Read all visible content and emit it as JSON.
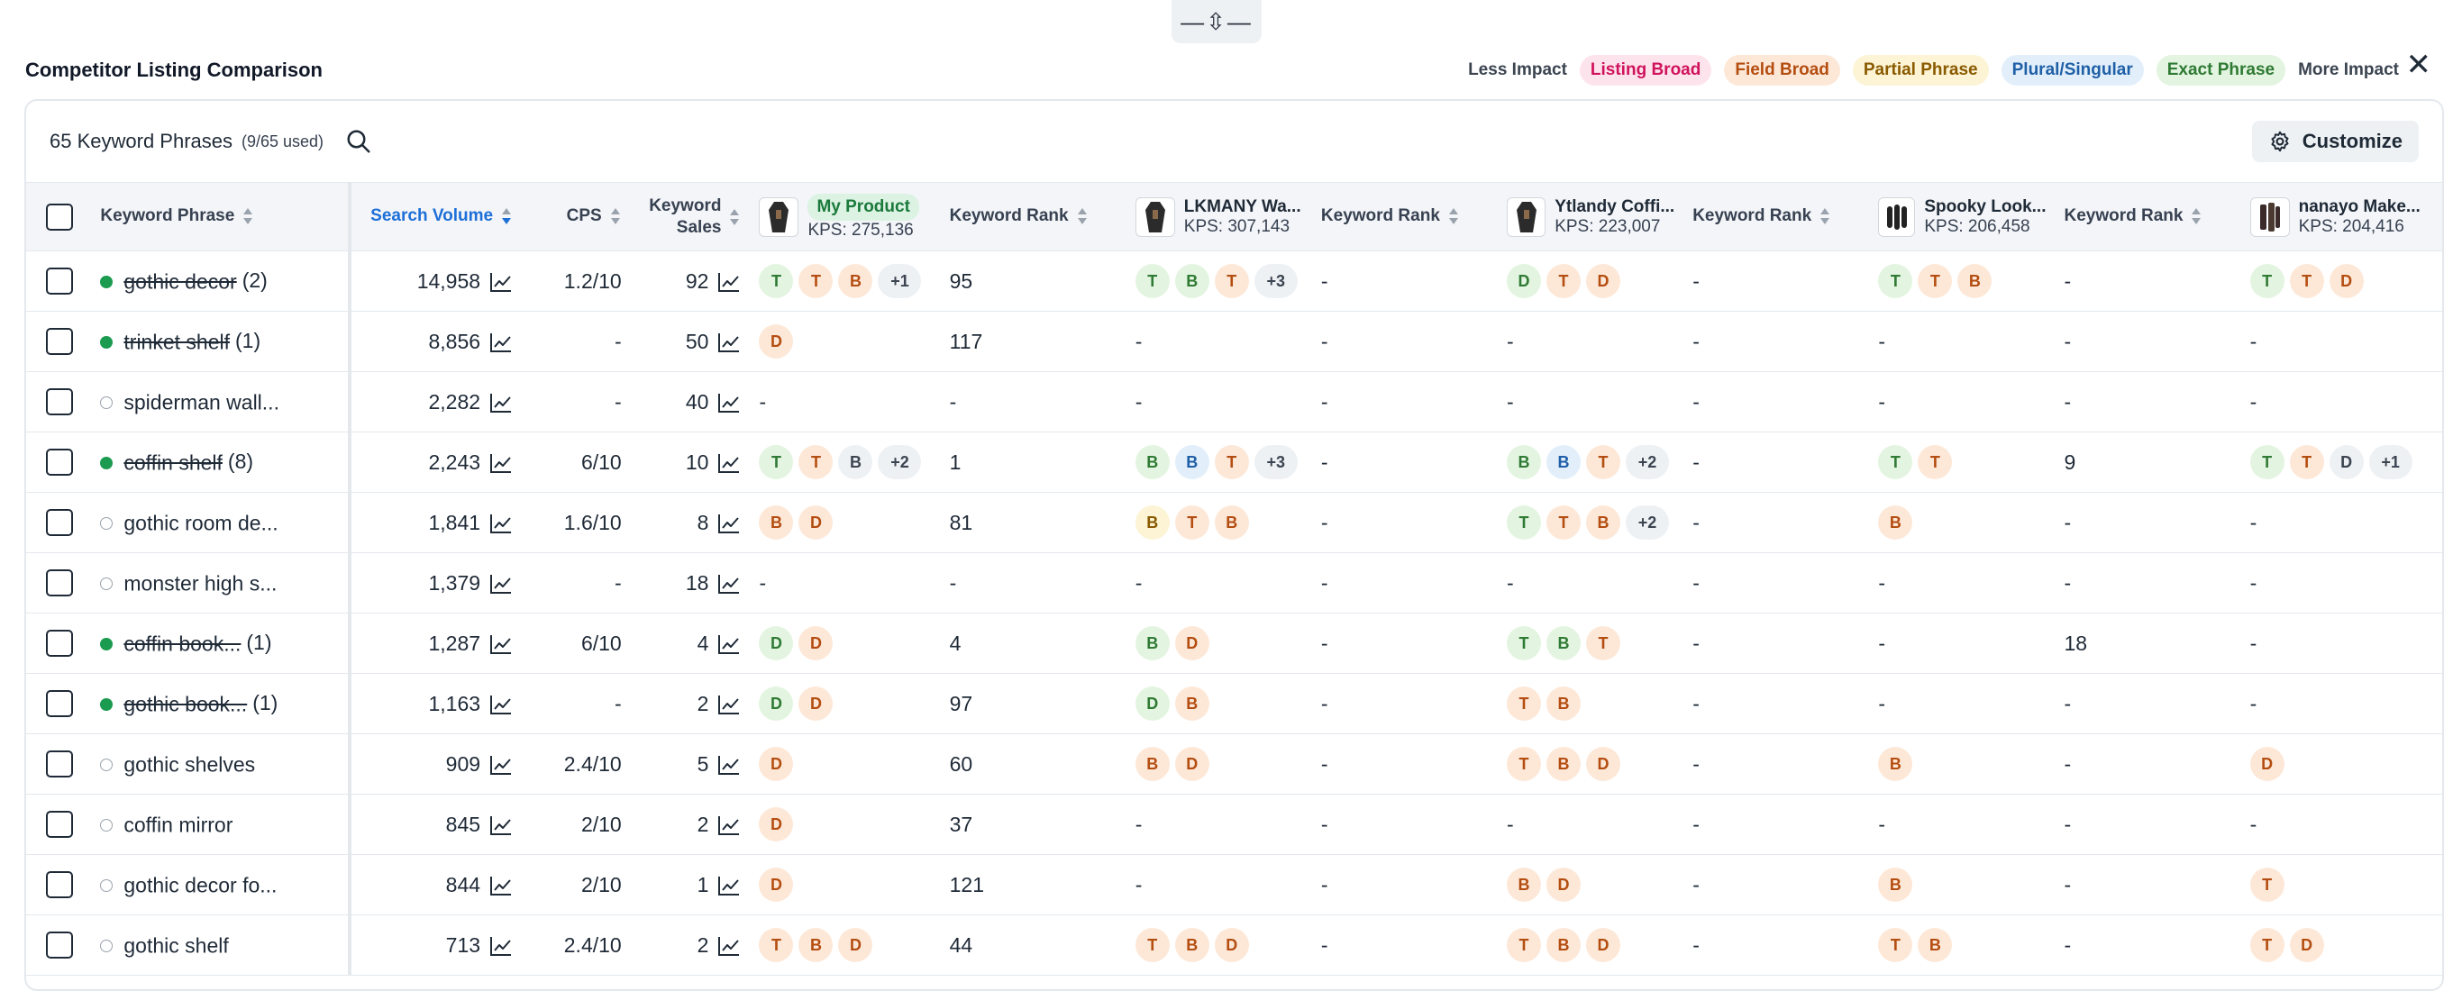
{
  "handle": {
    "glyph": "—⇳—"
  },
  "title": "Competitor Listing Comparison",
  "legend": {
    "less": "Less Impact",
    "more": "More Impact",
    "pills": [
      {
        "label": "Listing Broad",
        "bg": "#fde4ec",
        "fg": "#d0135d"
      },
      {
        "label": "Field Broad",
        "bg": "#fde8d8",
        "fg": "#b44d10"
      },
      {
        "label": "Partial Phrase",
        "bg": "#fcf4d4",
        "fg": "#8a5a00"
      },
      {
        "label": "Plural/Singular",
        "bg": "#e2effb",
        "fg": "#1f5fa6"
      },
      {
        "label": "Exact Phrase",
        "bg": "#e3f5e0",
        "fg": "#2f7a34"
      }
    ]
  },
  "close_glyph": "✕",
  "header": {
    "count": "65 Keyword Phrases",
    "used": "(9/65 used)",
    "customize": "Customize"
  },
  "columns": {
    "keyword": "Keyword Phrase",
    "volume": "Search Volume",
    "cps": "CPS",
    "sales_1": "Keyword",
    "sales_2": "Sales",
    "rank": "Keyword Rank"
  },
  "products": [
    {
      "name": "My Product",
      "kps": "KPS: 275,136",
      "mine": true
    },
    {
      "name": "LKMANY Wa...",
      "kps": "KPS: 307,143"
    },
    {
      "name": "Ytlandy Coffi...",
      "kps": "KPS: 223,007"
    },
    {
      "name": "Spooky Look...",
      "kps": "KPS: 206,458"
    },
    {
      "name": "nanayo Make...",
      "kps": "KPS: 204,416"
    }
  ],
  "rows": [
    {
      "kw": "gothic decor",
      "cnt": "(2)",
      "active": true,
      "vol": "14,958",
      "cps": "1.2/10",
      "sales": "92",
      "p": [
        [
          [
            "T",
            "green"
          ],
          [
            "T",
            "orange"
          ],
          [
            "B",
            "orange"
          ],
          [
            "+1",
            "more"
          ]
        ],
        [
          [
            "T",
            "green"
          ],
          [
            "B",
            "green"
          ],
          [
            "T",
            "orange"
          ],
          [
            "+3",
            "more"
          ]
        ],
        [
          [
            "D",
            "green"
          ],
          [
            "T",
            "orange"
          ],
          [
            "D",
            "orange"
          ]
        ],
        [
          [
            "T",
            "green"
          ],
          [
            "T",
            "orange"
          ],
          [
            "B",
            "orange"
          ]
        ],
        [
          [
            "T",
            "green"
          ],
          [
            "T",
            "orange"
          ],
          [
            "D",
            "orange"
          ]
        ]
      ],
      "r": [
        "95",
        "-",
        "-",
        "-"
      ]
    },
    {
      "kw": "trinket shelf",
      "cnt": "(1)",
      "active": true,
      "vol": "8,856",
      "cps": "-",
      "sales": "50",
      "p": [
        [
          [
            "D",
            "orange"
          ]
        ],
        "-",
        "-",
        "-",
        "-"
      ],
      "r": [
        "117",
        "-",
        "-",
        "-"
      ]
    },
    {
      "kw": "spiderman wall...",
      "cnt": "",
      "active": false,
      "vol": "2,282",
      "cps": "-",
      "sales": "40",
      "p": [
        "-",
        "-",
        "-",
        "-",
        "-"
      ],
      "r": [
        "-",
        "-",
        "-",
        "-"
      ]
    },
    {
      "kw": "coffin shelf",
      "cnt": "(8)",
      "active": true,
      "vol": "2,243",
      "cps": "6/10",
      "sales": "10",
      "p": [
        [
          [
            "T",
            "green"
          ],
          [
            "T",
            "orange"
          ],
          [
            "B",
            "gray"
          ],
          [
            "+2",
            "more"
          ]
        ],
        [
          [
            "B",
            "green"
          ],
          [
            "B",
            "blue"
          ],
          [
            "T",
            "orange"
          ],
          [
            "+3",
            "more"
          ]
        ],
        [
          [
            "B",
            "green"
          ],
          [
            "B",
            "blue"
          ],
          [
            "T",
            "orange"
          ],
          [
            "+2",
            "more"
          ]
        ],
        [
          [
            "T",
            "green"
          ],
          [
            "T",
            "orange"
          ]
        ],
        [
          [
            "T",
            "green"
          ],
          [
            "T",
            "orange"
          ],
          [
            "D",
            "gray"
          ],
          [
            "+1",
            "more"
          ]
        ]
      ],
      "r": [
        "1",
        "-",
        "-",
        "9"
      ]
    },
    {
      "kw": "gothic room de...",
      "cnt": "",
      "active": false,
      "vol": "1,841",
      "cps": "1.6/10",
      "sales": "8",
      "p": [
        [
          [
            "B",
            "orange"
          ],
          [
            "D",
            "orange"
          ]
        ],
        [
          [
            "B",
            "yellow"
          ],
          [
            "T",
            "orange"
          ],
          [
            "B",
            "orange"
          ]
        ],
        [
          [
            "T",
            "green"
          ],
          [
            "T",
            "orange"
          ],
          [
            "B",
            "orange"
          ],
          [
            "+2",
            "more"
          ]
        ],
        [
          [
            "B",
            "orange"
          ]
        ],
        "-"
      ],
      "r": [
        "81",
        "-",
        "-",
        "-"
      ]
    },
    {
      "kw": "monster high s...",
      "cnt": "",
      "active": false,
      "vol": "1,379",
      "cps": "-",
      "sales": "18",
      "p": [
        "-",
        "-",
        "-",
        "-",
        "-"
      ],
      "r": [
        "-",
        "-",
        "-",
        "-"
      ]
    },
    {
      "kw": "coffin book...",
      "cnt": "(1)",
      "active": true,
      "vol": "1,287",
      "cps": "6/10",
      "sales": "4",
      "p": [
        [
          [
            "D",
            "green"
          ],
          [
            "D",
            "orange"
          ]
        ],
        [
          [
            "B",
            "green"
          ],
          [
            "D",
            "orange"
          ]
        ],
        [
          [
            "T",
            "green"
          ],
          [
            "B",
            "green"
          ],
          [
            "T",
            "orange"
          ]
        ],
        "-",
        "-"
      ],
      "r": [
        "4",
        "-",
        "-",
        "18"
      ]
    },
    {
      "kw": "gothic book...",
      "cnt": "(1)",
      "active": true,
      "vol": "1,163",
      "cps": "-",
      "sales": "2",
      "p": [
        [
          [
            "D",
            "green"
          ],
          [
            "D",
            "orange"
          ]
        ],
        [
          [
            "D",
            "green"
          ],
          [
            "B",
            "orange"
          ]
        ],
        [
          [
            "T",
            "orange"
          ],
          [
            "B",
            "orange"
          ]
        ],
        "-",
        "-"
      ],
      "r": [
        "97",
        "-",
        "-",
        "-"
      ]
    },
    {
      "kw": "gothic shelves",
      "cnt": "",
      "active": false,
      "vol": "909",
      "cps": "2.4/10",
      "sales": "5",
      "p": [
        [
          [
            "D",
            "orange"
          ]
        ],
        [
          [
            "B",
            "orange"
          ],
          [
            "D",
            "orange"
          ]
        ],
        [
          [
            "T",
            "orange"
          ],
          [
            "B",
            "orange"
          ],
          [
            "D",
            "orange"
          ]
        ],
        [
          [
            "B",
            "orange"
          ]
        ],
        [
          [
            "D",
            "orange"
          ]
        ]
      ],
      "r": [
        "60",
        "-",
        "-",
        "-"
      ]
    },
    {
      "kw": "coffin mirror",
      "cnt": "",
      "active": false,
      "vol": "845",
      "cps": "2/10",
      "sales": "2",
      "p": [
        [
          [
            "D",
            "orange"
          ]
        ],
        "-",
        "-",
        "-",
        "-"
      ],
      "r": [
        "37",
        "-",
        "-",
        "-"
      ]
    },
    {
      "kw": "gothic decor fo...",
      "cnt": "",
      "active": false,
      "vol": "844",
      "cps": "2/10",
      "sales": "1",
      "p": [
        [
          [
            "D",
            "orange"
          ]
        ],
        "-",
        [
          [
            "B",
            "orange"
          ],
          [
            "D",
            "orange"
          ]
        ],
        [
          [
            "B",
            "orange"
          ]
        ],
        [
          [
            "T",
            "orange"
          ]
        ]
      ],
      "r": [
        "121",
        "-",
        "-",
        "-"
      ]
    },
    {
      "kw": "gothic shelf",
      "cnt": "",
      "active": false,
      "vol": "713",
      "cps": "2.4/10",
      "sales": "2",
      "p": [
        [
          [
            "T",
            "orange"
          ],
          [
            "B",
            "orange"
          ],
          [
            "D",
            "orange"
          ]
        ],
        [
          [
            "T",
            "orange"
          ],
          [
            "B",
            "orange"
          ],
          [
            "D",
            "orange"
          ]
        ],
        [
          [
            "T",
            "orange"
          ],
          [
            "B",
            "orange"
          ],
          [
            "D",
            "orange"
          ]
        ],
        [
          [
            "T",
            "orange"
          ],
          [
            "B",
            "orange"
          ]
        ],
        [
          [
            "T",
            "orange"
          ],
          [
            "D",
            "orange"
          ]
        ]
      ],
      "r": [
        "44",
        "-",
        "-",
        "-"
      ]
    }
  ]
}
